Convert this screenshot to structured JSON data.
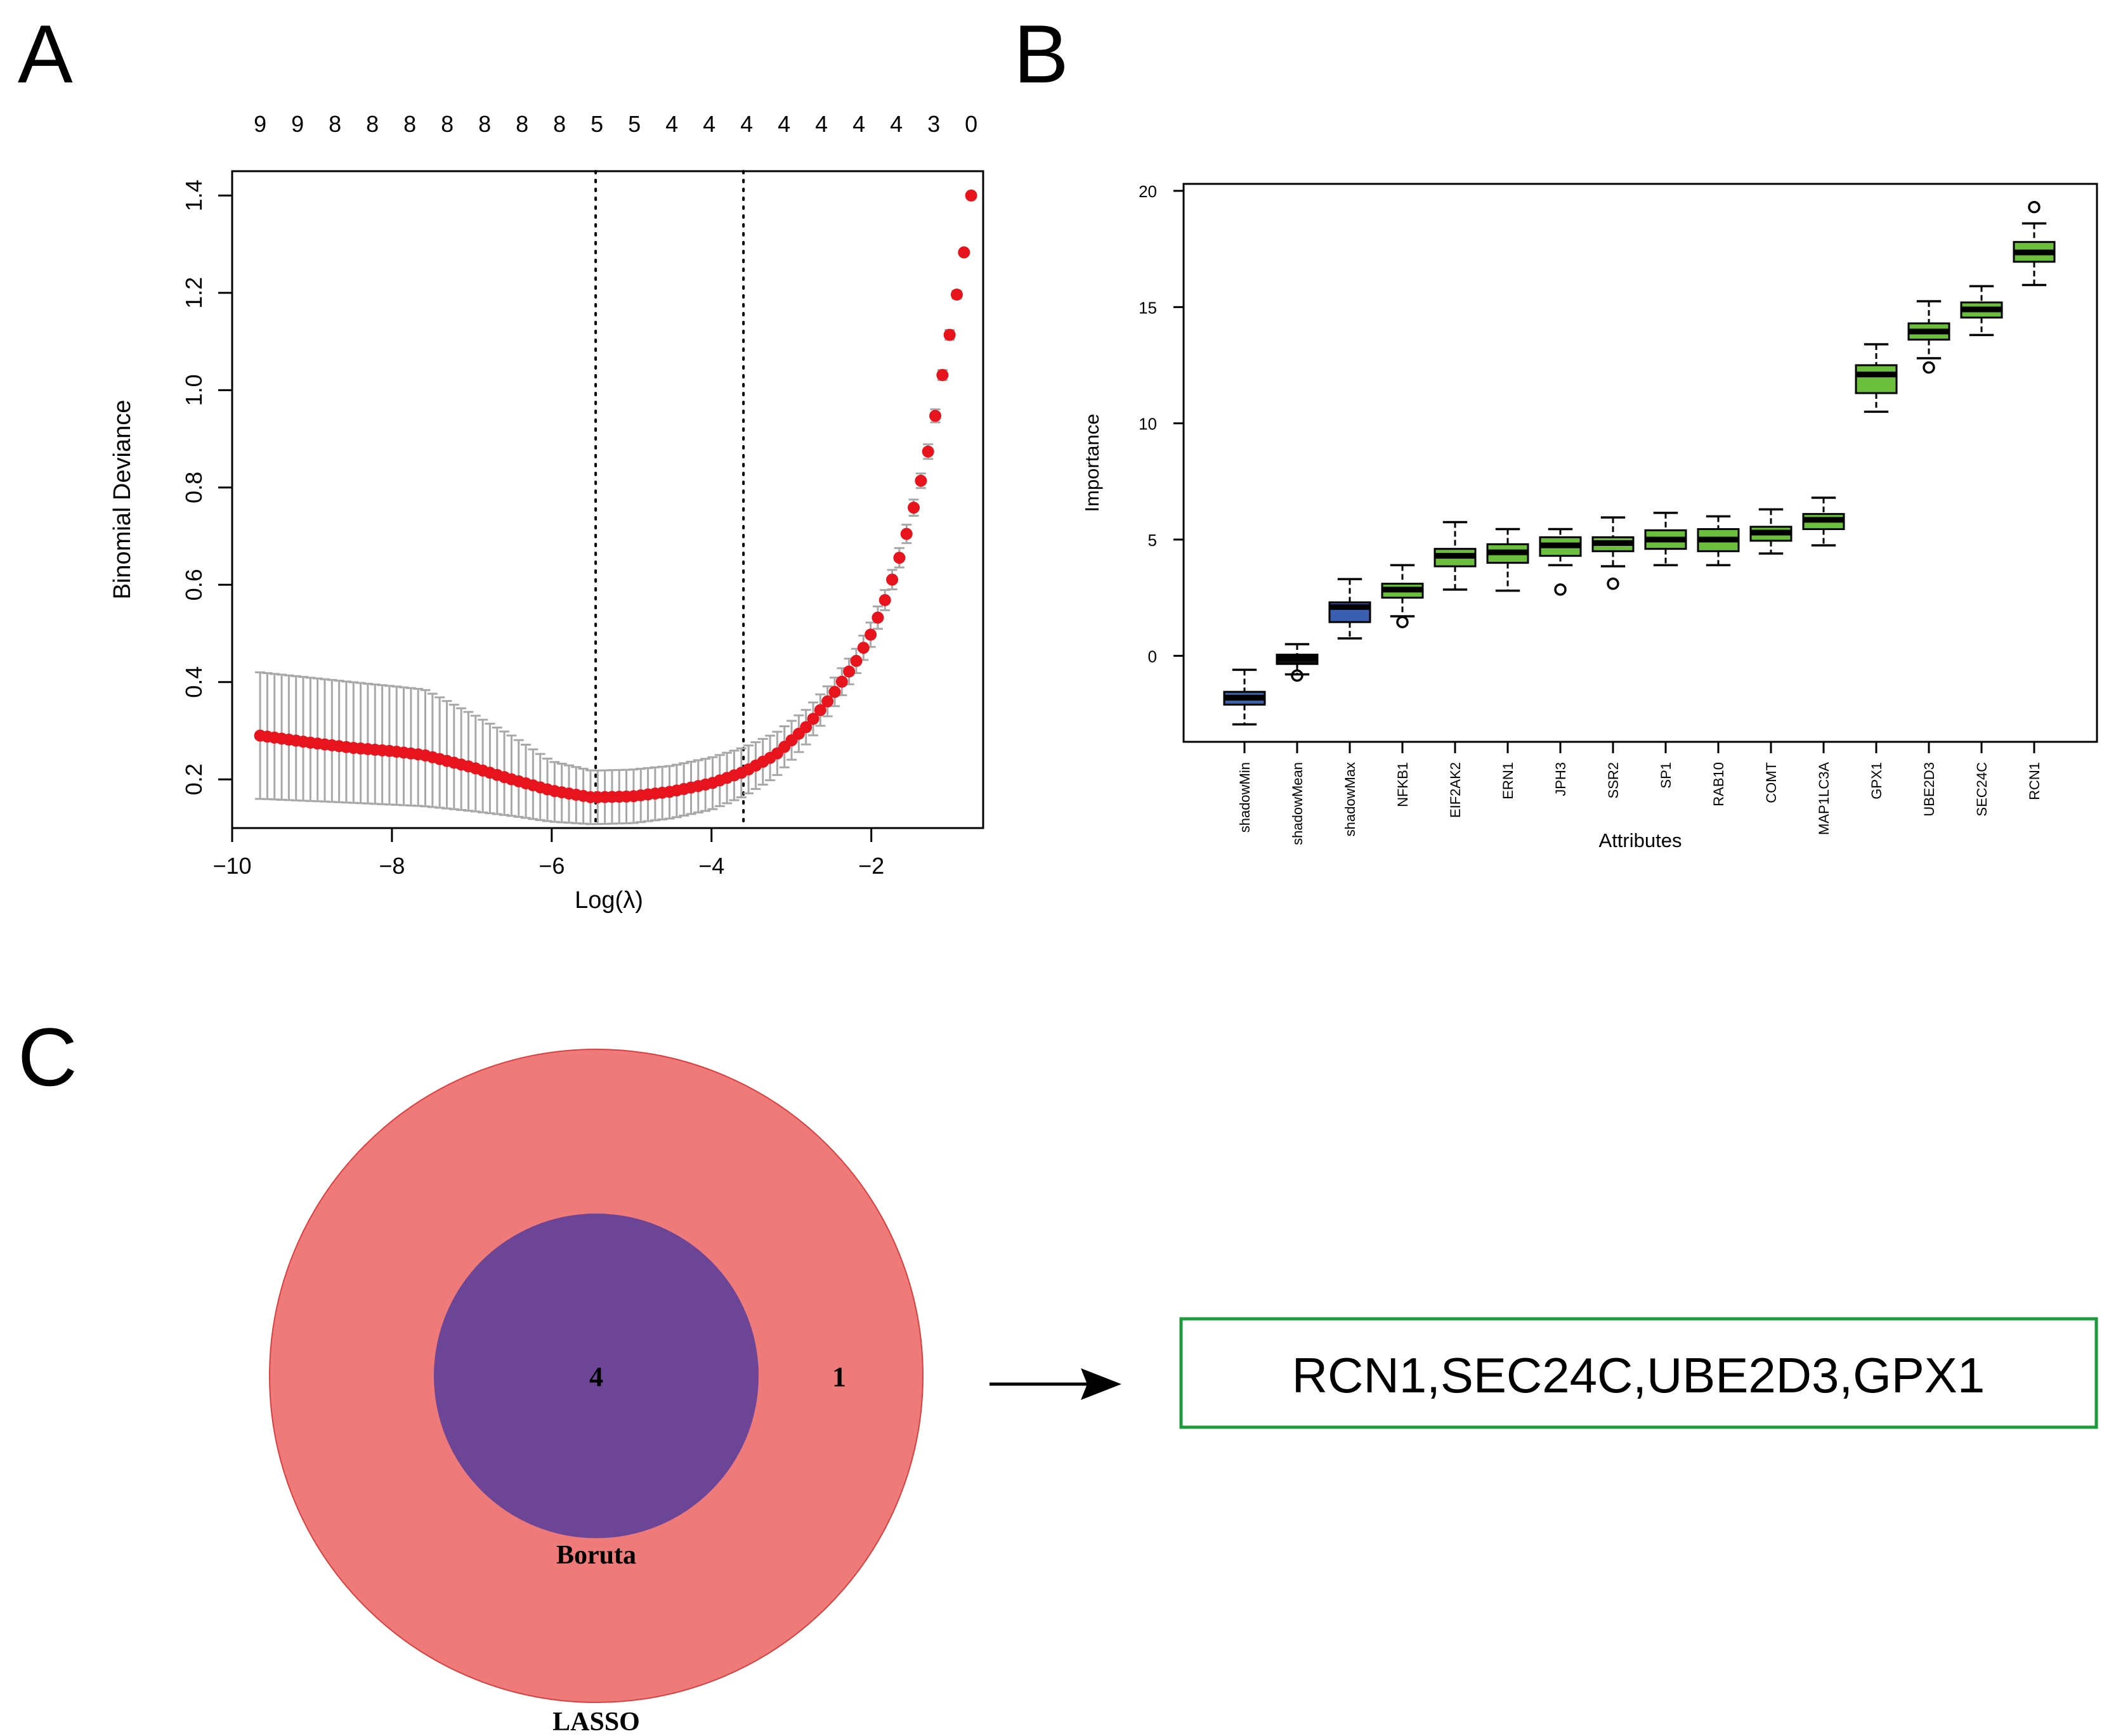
{
  "panels": {
    "a": "A",
    "b": "B",
    "c": "C"
  },
  "colors": {
    "point": "#e8141d",
    "errorbar": "#a8a8a8",
    "box_green": "#6cbf3d",
    "box_blue": "#3a5fb0",
    "box_black": "#111111",
    "lasso_fill": "#ee7a7a",
    "boruta_fill": "#6c4597",
    "result_border": "#1c9a3c"
  },
  "chart_data": [
    {
      "type": "scatter",
      "subtype": "lasso-cv-errorbar",
      "title": "",
      "xlabel": "Log(λ)",
      "ylabel": "Binomial Deviance",
      "xlim": [
        -10,
        -0.6
      ],
      "ylim": [
        0.1,
        1.45
      ],
      "xticks": [
        -10,
        -8,
        -6,
        -4,
        -2
      ],
      "xtick_labels": [
        "−10",
        "−8",
        "−6",
        "−4",
        "−2"
      ],
      "yticks": [
        0.2,
        0.4,
        0.6,
        0.8,
        1.0,
        1.2,
        1.4
      ],
      "ytick_labels": [
        "0.2",
        "0.4",
        "0.6",
        "0.8",
        "1.0",
        "1.2",
        "1.4"
      ],
      "top_axis_counts": [
        "9",
        "9",
        "8",
        "8",
        "8",
        "8",
        "8",
        "8",
        "8",
        "5",
        "5",
        "4",
        "4",
        "4",
        "4",
        "4",
        "4",
        "4",
        "3",
        "0"
      ],
      "vlines": [
        -5.45,
        -3.6
      ],
      "x_start": -9.65,
      "x_end": -0.75,
      "n_points": 100,
      "curve_knots": [
        [
          -9.65,
          0.29
        ],
        [
          -9.0,
          0.275
        ],
        [
          -8.5,
          0.265
        ],
        [
          -8.0,
          0.258
        ],
        [
          -7.6,
          0.25
        ],
        [
          -7.0,
          0.225
        ],
        [
          -6.5,
          0.2
        ],
        [
          -6.0,
          0.177
        ],
        [
          -5.5,
          0.163
        ],
        [
          -5.0,
          0.165
        ],
        [
          -4.5,
          0.175
        ],
        [
          -4.0,
          0.192
        ],
        [
          -3.6,
          0.215
        ],
        [
          -3.2,
          0.25
        ],
        [
          -2.8,
          0.31
        ],
        [
          -2.5,
          0.37
        ],
        [
          -2.2,
          0.44
        ],
        [
          -2.0,
          0.5
        ],
        [
          -1.8,
          0.58
        ],
        [
          -1.6,
          0.68
        ],
        [
          -1.4,
          0.8
        ],
        [
          -1.25,
          0.9
        ],
        [
          -1.1,
          1.04
        ],
        [
          -0.98,
          1.15
        ],
        [
          -0.85,
          1.27
        ],
        [
          -0.75,
          1.4
        ]
      ],
      "upper_knots": [
        [
          -9.65,
          0.42
        ],
        [
          -8.5,
          0.4
        ],
        [
          -7.6,
          0.385
        ],
        [
          -7.0,
          0.335
        ],
        [
          -6.5,
          0.29
        ],
        [
          -6.0,
          0.237
        ],
        [
          -5.5,
          0.218
        ],
        [
          -5.0,
          0.22
        ],
        [
          -4.5,
          0.228
        ],
        [
          -4.0,
          0.245
        ],
        [
          -3.6,
          0.265
        ],
        [
          -3.2,
          0.295
        ],
        [
          -2.8,
          0.345
        ],
        [
          -2.5,
          0.4
        ],
        [
          -2.2,
          0.465
        ],
        [
          -2.0,
          0.525
        ],
        [
          -1.8,
          0.6
        ],
        [
          -1.6,
          0.7
        ],
        [
          -1.4,
          0.815
        ],
        [
          -1.25,
          0.915
        ],
        [
          -1.1,
          1.05
        ],
        [
          -0.98,
          1.16
        ],
        [
          -0.85,
          1.275
        ],
        [
          -0.75,
          1.405
        ]
      ],
      "lower_knots": [
        [
          -9.65,
          0.16
        ],
        [
          -8.5,
          0.152
        ],
        [
          -7.6,
          0.145
        ],
        [
          -7.0,
          0.135
        ],
        [
          -6.5,
          0.125
        ],
        [
          -6.0,
          0.113
        ],
        [
          -5.5,
          0.108
        ],
        [
          -5.0,
          0.11
        ],
        [
          -4.5,
          0.12
        ],
        [
          -4.0,
          0.138
        ],
        [
          -3.6,
          0.165
        ],
        [
          -3.2,
          0.205
        ],
        [
          -2.8,
          0.275
        ],
        [
          -2.5,
          0.34
        ],
        [
          -2.2,
          0.415
        ],
        [
          -2.0,
          0.475
        ],
        [
          -1.8,
          0.56
        ],
        [
          -1.6,
          0.66
        ],
        [
          -1.4,
          0.785
        ],
        [
          -1.25,
          0.885
        ],
        [
          -1.1,
          1.03
        ],
        [
          -0.98,
          1.14
        ],
        [
          -0.85,
          1.265
        ],
        [
          -0.75,
          1.395
        ]
      ]
    },
    {
      "type": "boxplot",
      "title": "",
      "xlabel": "Attributes",
      "ylabel": "Importance",
      "ylim": [
        -3.7,
        20.3
      ],
      "yticks": [
        0,
        5,
        10,
        15,
        20
      ],
      "ytick_labels": [
        "0",
        "5",
        "10",
        "15",
        "20"
      ],
      "boxes": [
        {
          "name": "shadowMin",
          "min": -2.95,
          "q1": -2.1,
          "median": -1.8,
          "q3": -1.55,
          "max": -0.6,
          "outliers": [],
          "color": "blue"
        },
        {
          "name": "shadowMean",
          "min": -0.8,
          "q1": -0.35,
          "median": -0.1,
          "q3": 0.05,
          "max": 0.5,
          "outliers": [
            -0.85
          ],
          "color": "black"
        },
        {
          "name": "shadowMax",
          "min": 0.75,
          "q1": 1.45,
          "median": 2.1,
          "q3": 2.3,
          "max": 3.3,
          "outliers": [],
          "color": "blue"
        },
        {
          "name": "NFKB1",
          "min": 1.7,
          "q1": 2.5,
          "median": 2.85,
          "q3": 3.1,
          "max": 3.9,
          "outliers": [
            1.45
          ],
          "color": "green"
        },
        {
          "name": "EIF2AK2",
          "min": 2.85,
          "q1": 3.85,
          "median": 4.3,
          "q3": 4.6,
          "max": 5.75,
          "outliers": [],
          "color": "green"
        },
        {
          "name": "ERN1",
          "min": 2.8,
          "q1": 4.0,
          "median": 4.45,
          "q3": 4.8,
          "max": 5.45,
          "outliers": [],
          "color": "green"
        },
        {
          "name": "JPH3",
          "min": 3.9,
          "q1": 4.3,
          "median": 4.75,
          "q3": 5.1,
          "max": 5.45,
          "outliers": [
            2.85
          ],
          "color": "green"
        },
        {
          "name": "SSR2",
          "min": 3.85,
          "q1": 4.5,
          "median": 4.85,
          "q3": 5.1,
          "max": 5.95,
          "outliers": [
            3.1
          ],
          "color": "green"
        },
        {
          "name": "SP1",
          "min": 3.9,
          "q1": 4.6,
          "median": 5.0,
          "q3": 5.4,
          "max": 6.15,
          "outliers": [],
          "color": "green"
        },
        {
          "name": "RAB10",
          "min": 3.9,
          "q1": 4.5,
          "median": 5.0,
          "q3": 5.45,
          "max": 6.0,
          "outliers": [],
          "color": "green"
        },
        {
          "name": "COMT",
          "min": 4.4,
          "q1": 4.95,
          "median": 5.3,
          "q3": 5.55,
          "max": 6.3,
          "outliers": [],
          "color": "green"
        },
        {
          "name": "MAP1LC3A",
          "min": 4.75,
          "q1": 5.45,
          "median": 5.85,
          "q3": 6.1,
          "max": 6.8,
          "outliers": [],
          "color": "green"
        },
        {
          "name": "GPX1",
          "min": 10.5,
          "q1": 11.3,
          "median": 12.1,
          "q3": 12.5,
          "max": 13.4,
          "outliers": [],
          "color": "green"
        },
        {
          "name": "UBE2D3",
          "min": 12.8,
          "q1": 13.6,
          "median": 13.95,
          "q3": 14.3,
          "max": 15.25,
          "outliers": [
            12.4
          ],
          "color": "green"
        },
        {
          "name": "SEC24C",
          "min": 13.8,
          "q1": 14.55,
          "median": 14.9,
          "q3": 15.2,
          "max": 15.9,
          "outliers": [],
          "color": "green"
        },
        {
          "name": "RCN1",
          "min": 15.95,
          "q1": 16.95,
          "median": 17.35,
          "q3": 17.8,
          "max": 18.6,
          "outliers": [
            19.3
          ],
          "color": "green"
        }
      ]
    }
  ],
  "venn": {
    "outer_label": "LASSO",
    "inner_label": "Boruta",
    "inner_count": "4",
    "outer_only_count": "1"
  },
  "result": {
    "text": "RCN1,SEC24C,UBE2D3,GPX1"
  }
}
